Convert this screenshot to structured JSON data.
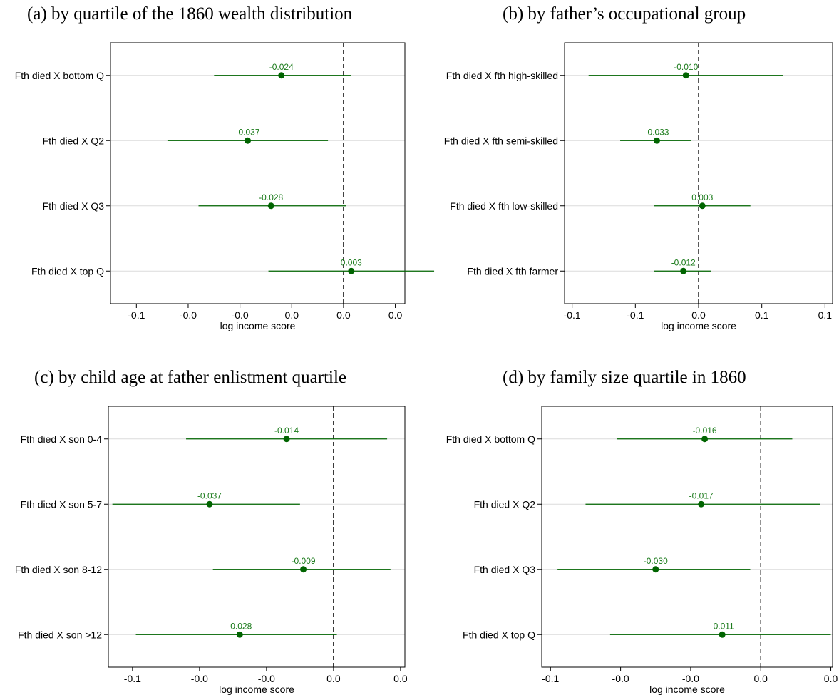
{
  "axis_label": "log income score",
  "chart_data": [
    {
      "type": "scatter",
      "title": "(a) by quartile of the 1860 wealth distribution",
      "xlabel": "log income score",
      "xticks": [
        "-0.1",
        "-0.0",
        "-0.0",
        "0.0",
        "0.0",
        "0.0"
      ],
      "xtick_values": [
        -0.08,
        -0.06,
        -0.04,
        -0.02,
        0.0,
        0.02
      ],
      "xlim": [
        -0.09,
        0.0237
      ],
      "ref_line": 0,
      "categories": [
        "Fth died X bottom Q",
        "Fth died X Q2",
        "Fth died X Q3",
        "Fth died X top Q"
      ],
      "estimates": [
        -0.024,
        -0.037,
        -0.028,
        0.003
      ],
      "labels": [
        "-0.024",
        "-0.037",
        "-0.028",
        "0.003"
      ],
      "ci_low": [
        -0.05,
        -0.068,
        -0.056,
        -0.029
      ],
      "ci_high": [
        0.003,
        -0.006,
        0.001,
        0.035
      ]
    },
    {
      "type": "scatter",
      "title": "(b) by father’s occupational group",
      "xlabel": "log income score",
      "xticks": [
        "-0.1",
        "-0.1",
        "0.0",
        "0.1",
        "0.1"
      ],
      "xtick_values": [
        -0.1,
        -0.05,
        0.0,
        0.05,
        0.1
      ],
      "xlim": [
        -0.106,
        0.106
      ],
      "ref_line": 0,
      "categories": [
        "Fth died X fth high-skilled",
        "Fth died X fth semi-skilled",
        "Fth died X fth low-skilled",
        "Fth died X fth farmer"
      ],
      "estimates": [
        -0.01,
        -0.033,
        0.003,
        -0.012
      ],
      "labels": [
        "-0.010",
        "-0.033",
        "0.003",
        "-0.012"
      ],
      "ci_low": [
        -0.087,
        -0.062,
        -0.035,
        -0.035
      ],
      "ci_high": [
        0.067,
        -0.006,
        0.041,
        0.01
      ]
    },
    {
      "type": "scatter",
      "title": "(c) by child age at father enlistment quartile",
      "xlabel": "log income score",
      "xticks": [
        "-0.1",
        "-0.0",
        "-0.0",
        "0.0",
        "0.0"
      ],
      "xtick_values": [
        -0.06,
        -0.04,
        -0.02,
        0.0,
        0.02
      ],
      "xlim": [
        -0.0672,
        0.0213
      ],
      "ref_line": 0,
      "categories": [
        "Fth died X son 0-4",
        "Fth died X son 5-7",
        "Fth died X son 8-12",
        "Fth died X son >12"
      ],
      "estimates": [
        -0.014,
        -0.037,
        -0.009,
        -0.028
      ],
      "labels": [
        "-0.014",
        "-0.037",
        "-0.009",
        "-0.028"
      ],
      "ci_low": [
        -0.044,
        -0.066,
        -0.036,
        -0.059
      ],
      "ci_high": [
        0.016,
        -0.01,
        0.017,
        0.001
      ]
    },
    {
      "type": "scatter",
      "title": "(d) by family size quartile in 1860",
      "xlabel": "log income score",
      "xticks": [
        "-0.1",
        "-0.0",
        "-0.0",
        "0.0",
        "0.0"
      ],
      "xtick_values": [
        -0.06,
        -0.04,
        -0.02,
        0.0,
        0.02
      ],
      "xlim": [
        -0.0625,
        0.0205
      ],
      "ref_line": 0,
      "categories": [
        "Fth died X bottom Q",
        "Fth died X Q2",
        "Fth died X Q3",
        "Fth died X top Q"
      ],
      "estimates": [
        -0.016,
        -0.017,
        -0.03,
        -0.011
      ],
      "labels": [
        "-0.016",
        "-0.017",
        "-0.030",
        "-0.011"
      ],
      "ci_low": [
        -0.041,
        -0.05,
        -0.058,
        -0.043
      ],
      "ci_high": [
        0.009,
        0.017,
        -0.003,
        0.02
      ]
    }
  ],
  "colors": {
    "marker": "#006400",
    "label": "#1a7a1a",
    "grid": "#dcdcdc",
    "axis": "#000000"
  }
}
